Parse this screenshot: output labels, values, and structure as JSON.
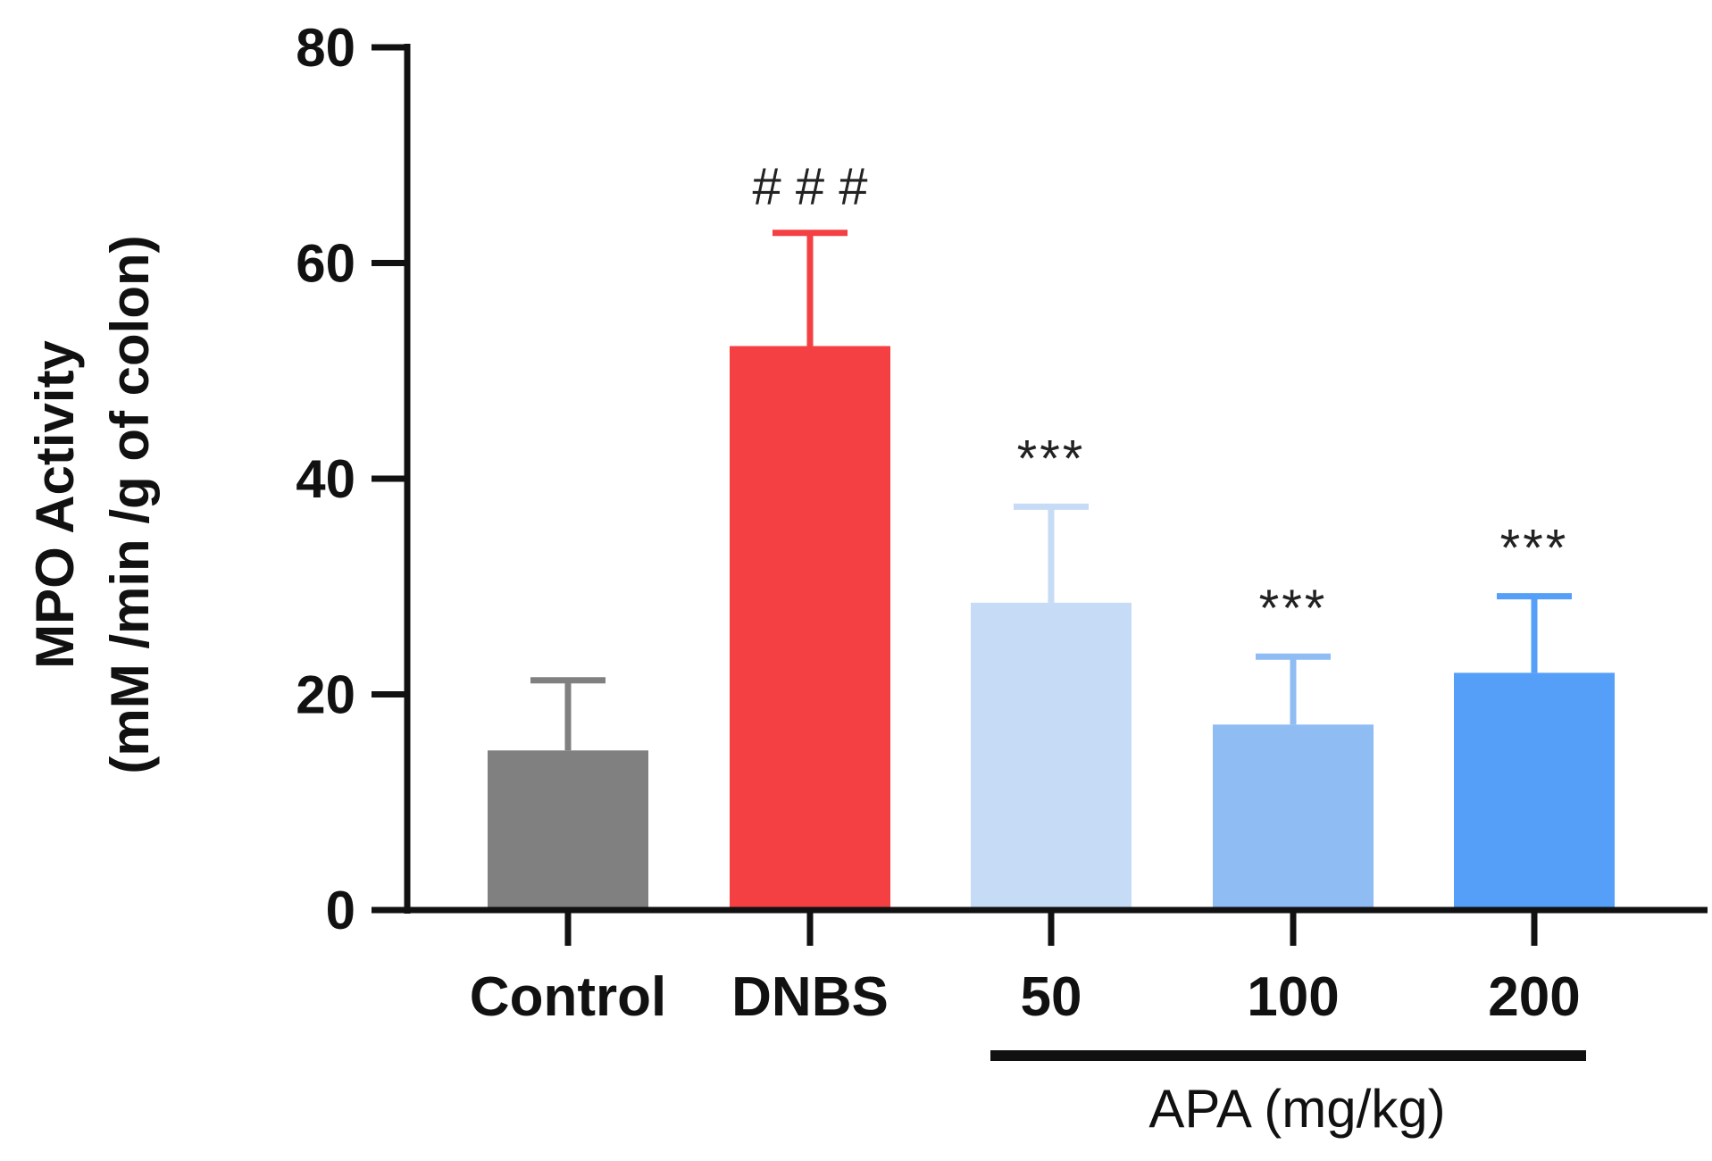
{
  "chart_data": {
    "type": "bar",
    "title": "",
    "ylabel_line1": "MPO Activity",
    "ylabel_line2": "(mM /min /g of colon)",
    "xlabel": "",
    "ylim": [
      0,
      80
    ],
    "yticks": [
      "0",
      "20",
      "40",
      "60",
      "80"
    ],
    "ytick_values": [
      0,
      20,
      40,
      60,
      80
    ],
    "categories": [
      "Control",
      "DNBS",
      "50",
      "100",
      "200"
    ],
    "values": [
      14.8,
      52.3,
      28.5,
      17.2,
      22.0
    ],
    "errors": [
      6.5,
      10.5,
      8.9,
      6.3,
      7.1
    ],
    "colors": [
      "#808080",
      "#f44043",
      "#c6dbf5",
      "#8fbcf3",
      "#559ff8"
    ],
    "error_colors": [
      "#808080",
      "#f44043",
      "#c6dbf5",
      "#8fbcf3",
      "#559ff8"
    ],
    "annotations": [
      "",
      "# # #",
      "***",
      "***",
      "***"
    ],
    "group": {
      "label": "APA (mg/kg)",
      "start_category": 2,
      "end_category": 4
    }
  }
}
